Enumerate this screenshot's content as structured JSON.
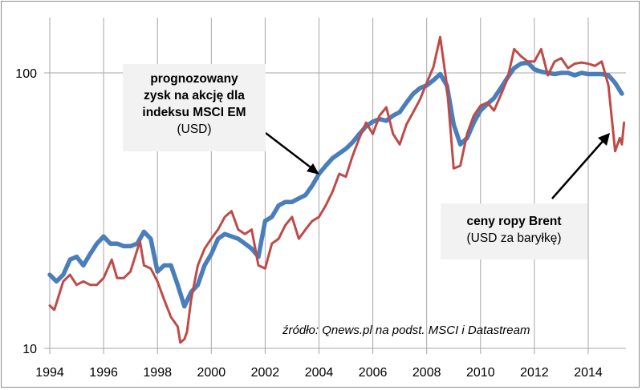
{
  "chart_data": {
    "type": "line",
    "title": "",
    "xlabel": "",
    "ylabel": "",
    "yscale": "log",
    "ylim": [
      10,
      150
    ],
    "xlim": [
      1994,
      2015.7
    ],
    "grid": {
      "vertical": true,
      "horizontal": true
    },
    "x_ticks": [
      "1994",
      "1996",
      "1998",
      "2000",
      "2002",
      "2004",
      "2006",
      "2008",
      "2010",
      "2012",
      "2014"
    ],
    "y_ticks": [
      "10",
      "100"
    ],
    "annotations": [
      {
        "id": "eps",
        "lines_bold": [
          "prognozowany",
          "zysk na akcję dla",
          "indeksu MSCI EM"
        ],
        "line_regular": "(USD)"
      },
      {
        "id": "brent",
        "lines_bold": [
          "ceny ropy Brent"
        ],
        "line_regular": "(USD za baryłkę)"
      }
    ],
    "source": "źródło: Qnews.pl na podst. MSCI i Datastream",
    "series": [
      {
        "name": "prognozowany zysk na akcję dla indeksu MSCI EM (USD)",
        "color": "#4a7ebb",
        "x": [
          1994.0,
          1994.25,
          1994.5,
          1994.75,
          1995.0,
          1995.25,
          1995.5,
          1995.75,
          1996.0,
          1996.25,
          1996.5,
          1996.75,
          1997.0,
          1997.25,
          1997.5,
          1997.75,
          1998.0,
          1998.25,
          1998.5,
          1998.75,
          1999.0,
          1999.25,
          1999.5,
          1999.75,
          2000.0,
          2000.25,
          2000.5,
          2000.75,
          2001.0,
          2001.25,
          2001.5,
          2001.75,
          2002.0,
          2002.25,
          2002.5,
          2002.75,
          2003.0,
          2003.25,
          2003.5,
          2003.75,
          2004.0,
          2004.25,
          2004.5,
          2004.75,
          2005.0,
          2005.25,
          2005.5,
          2005.75,
          2006.0,
          2006.25,
          2006.5,
          2006.75,
          2007.0,
          2007.25,
          2007.5,
          2007.75,
          2008.0,
          2008.25,
          2008.5,
          2008.75,
          2009.0,
          2009.25,
          2009.5,
          2009.75,
          2010.0,
          2010.25,
          2010.5,
          2010.75,
          2011.0,
          2011.25,
          2011.5,
          2011.75,
          2012.0,
          2012.25,
          2012.5,
          2012.75,
          2013.0,
          2013.25,
          2013.5,
          2013.75,
          2014.0,
          2014.25,
          2014.5,
          2014.75,
          2015.0,
          2015.25
        ],
        "values": [
          18.5,
          17.5,
          18.5,
          21,
          21.5,
          20,
          22,
          24,
          25.5,
          24,
          24,
          23.5,
          23.5,
          24,
          26.5,
          25,
          19,
          20,
          20,
          17,
          14.2,
          16,
          17,
          20,
          22,
          25,
          26,
          25.5,
          25,
          24,
          23,
          21.5,
          29,
          30,
          33,
          34,
          34,
          35,
          36,
          39,
          43,
          46,
          49,
          51,
          53,
          56,
          60,
          64,
          66.5,
          68,
          67,
          70,
          72,
          78,
          84,
          88,
          90,
          94,
          99,
          90,
          65,
          55,
          58,
          66,
          73,
          77,
          81,
          88,
          96,
          104,
          108,
          109,
          103,
          101,
          100,
          99,
          100,
          100,
          98,
          100,
          99,
          99,
          99,
          98,
          92,
          84
        ]
      },
      {
        "name": "ceny ropy Brent (USD za baryłkę)",
        "color": "#be4b48",
        "x": [
          1994.0,
          1994.17,
          1994.5,
          1994.75,
          1995.0,
          1995.25,
          1995.5,
          1995.75,
          1996.0,
          1996.3,
          1996.5,
          1996.75,
          1997.0,
          1997.2,
          1997.35,
          1997.5,
          1997.75,
          1998.0,
          1998.25,
          1998.5,
          1998.75,
          1998.85,
          1999.0,
          1999.1,
          1999.25,
          1999.5,
          1999.75,
          2000.0,
          2000.25,
          2000.5,
          2000.75,
          2001.0,
          2001.25,
          2001.5,
          2001.75,
          2002.0,
          2002.25,
          2002.5,
          2002.75,
          2003.0,
          2003.25,
          2003.5,
          2003.75,
          2004.0,
          2004.25,
          2004.5,
          2004.75,
          2005.0,
          2005.25,
          2005.5,
          2005.75,
          2006.0,
          2006.25,
          2006.5,
          2006.75,
          2007.0,
          2007.25,
          2007.5,
          2007.75,
          2008.0,
          2008.25,
          2008.5,
          2008.75,
          2009.0,
          2009.25,
          2009.5,
          2009.75,
          2010.0,
          2010.25,
          2010.5,
          2010.75,
          2011.0,
          2011.25,
          2011.5,
          2011.75,
          2012.0,
          2012.25,
          2012.5,
          2012.75,
          2013.0,
          2013.25,
          2013.5,
          2013.75,
          2014.0,
          2014.25,
          2014.5,
          2014.75,
          2015.0,
          2015.17,
          2015.25,
          2015.33
        ],
        "values": [
          14.3,
          13.8,
          17.5,
          18.5,
          17,
          17.5,
          17,
          17,
          18,
          21,
          18,
          18,
          19,
          22,
          24.5,
          20,
          19.5,
          17.5,
          15,
          13,
          12,
          10.5,
          10.8,
          11.5,
          15,
          20,
          23,
          25,
          27,
          30,
          31.5,
          27,
          26,
          27,
          20,
          19.5,
          24,
          25,
          28,
          30,
          25,
          27,
          29,
          30,
          33,
          37,
          43,
          42,
          50,
          58,
          66,
          60,
          70,
          75,
          60,
          55,
          65,
          72,
          80,
          92,
          105,
          135,
          90,
          45,
          46,
          60,
          70,
          76,
          78,
          73,
          83,
          95,
          122,
          115,
          110,
          110,
          122,
          98,
          110,
          113,
          104,
          108,
          109,
          108,
          106,
          110,
          90,
          52,
          58,
          55,
          66
        ]
      }
    ]
  }
}
